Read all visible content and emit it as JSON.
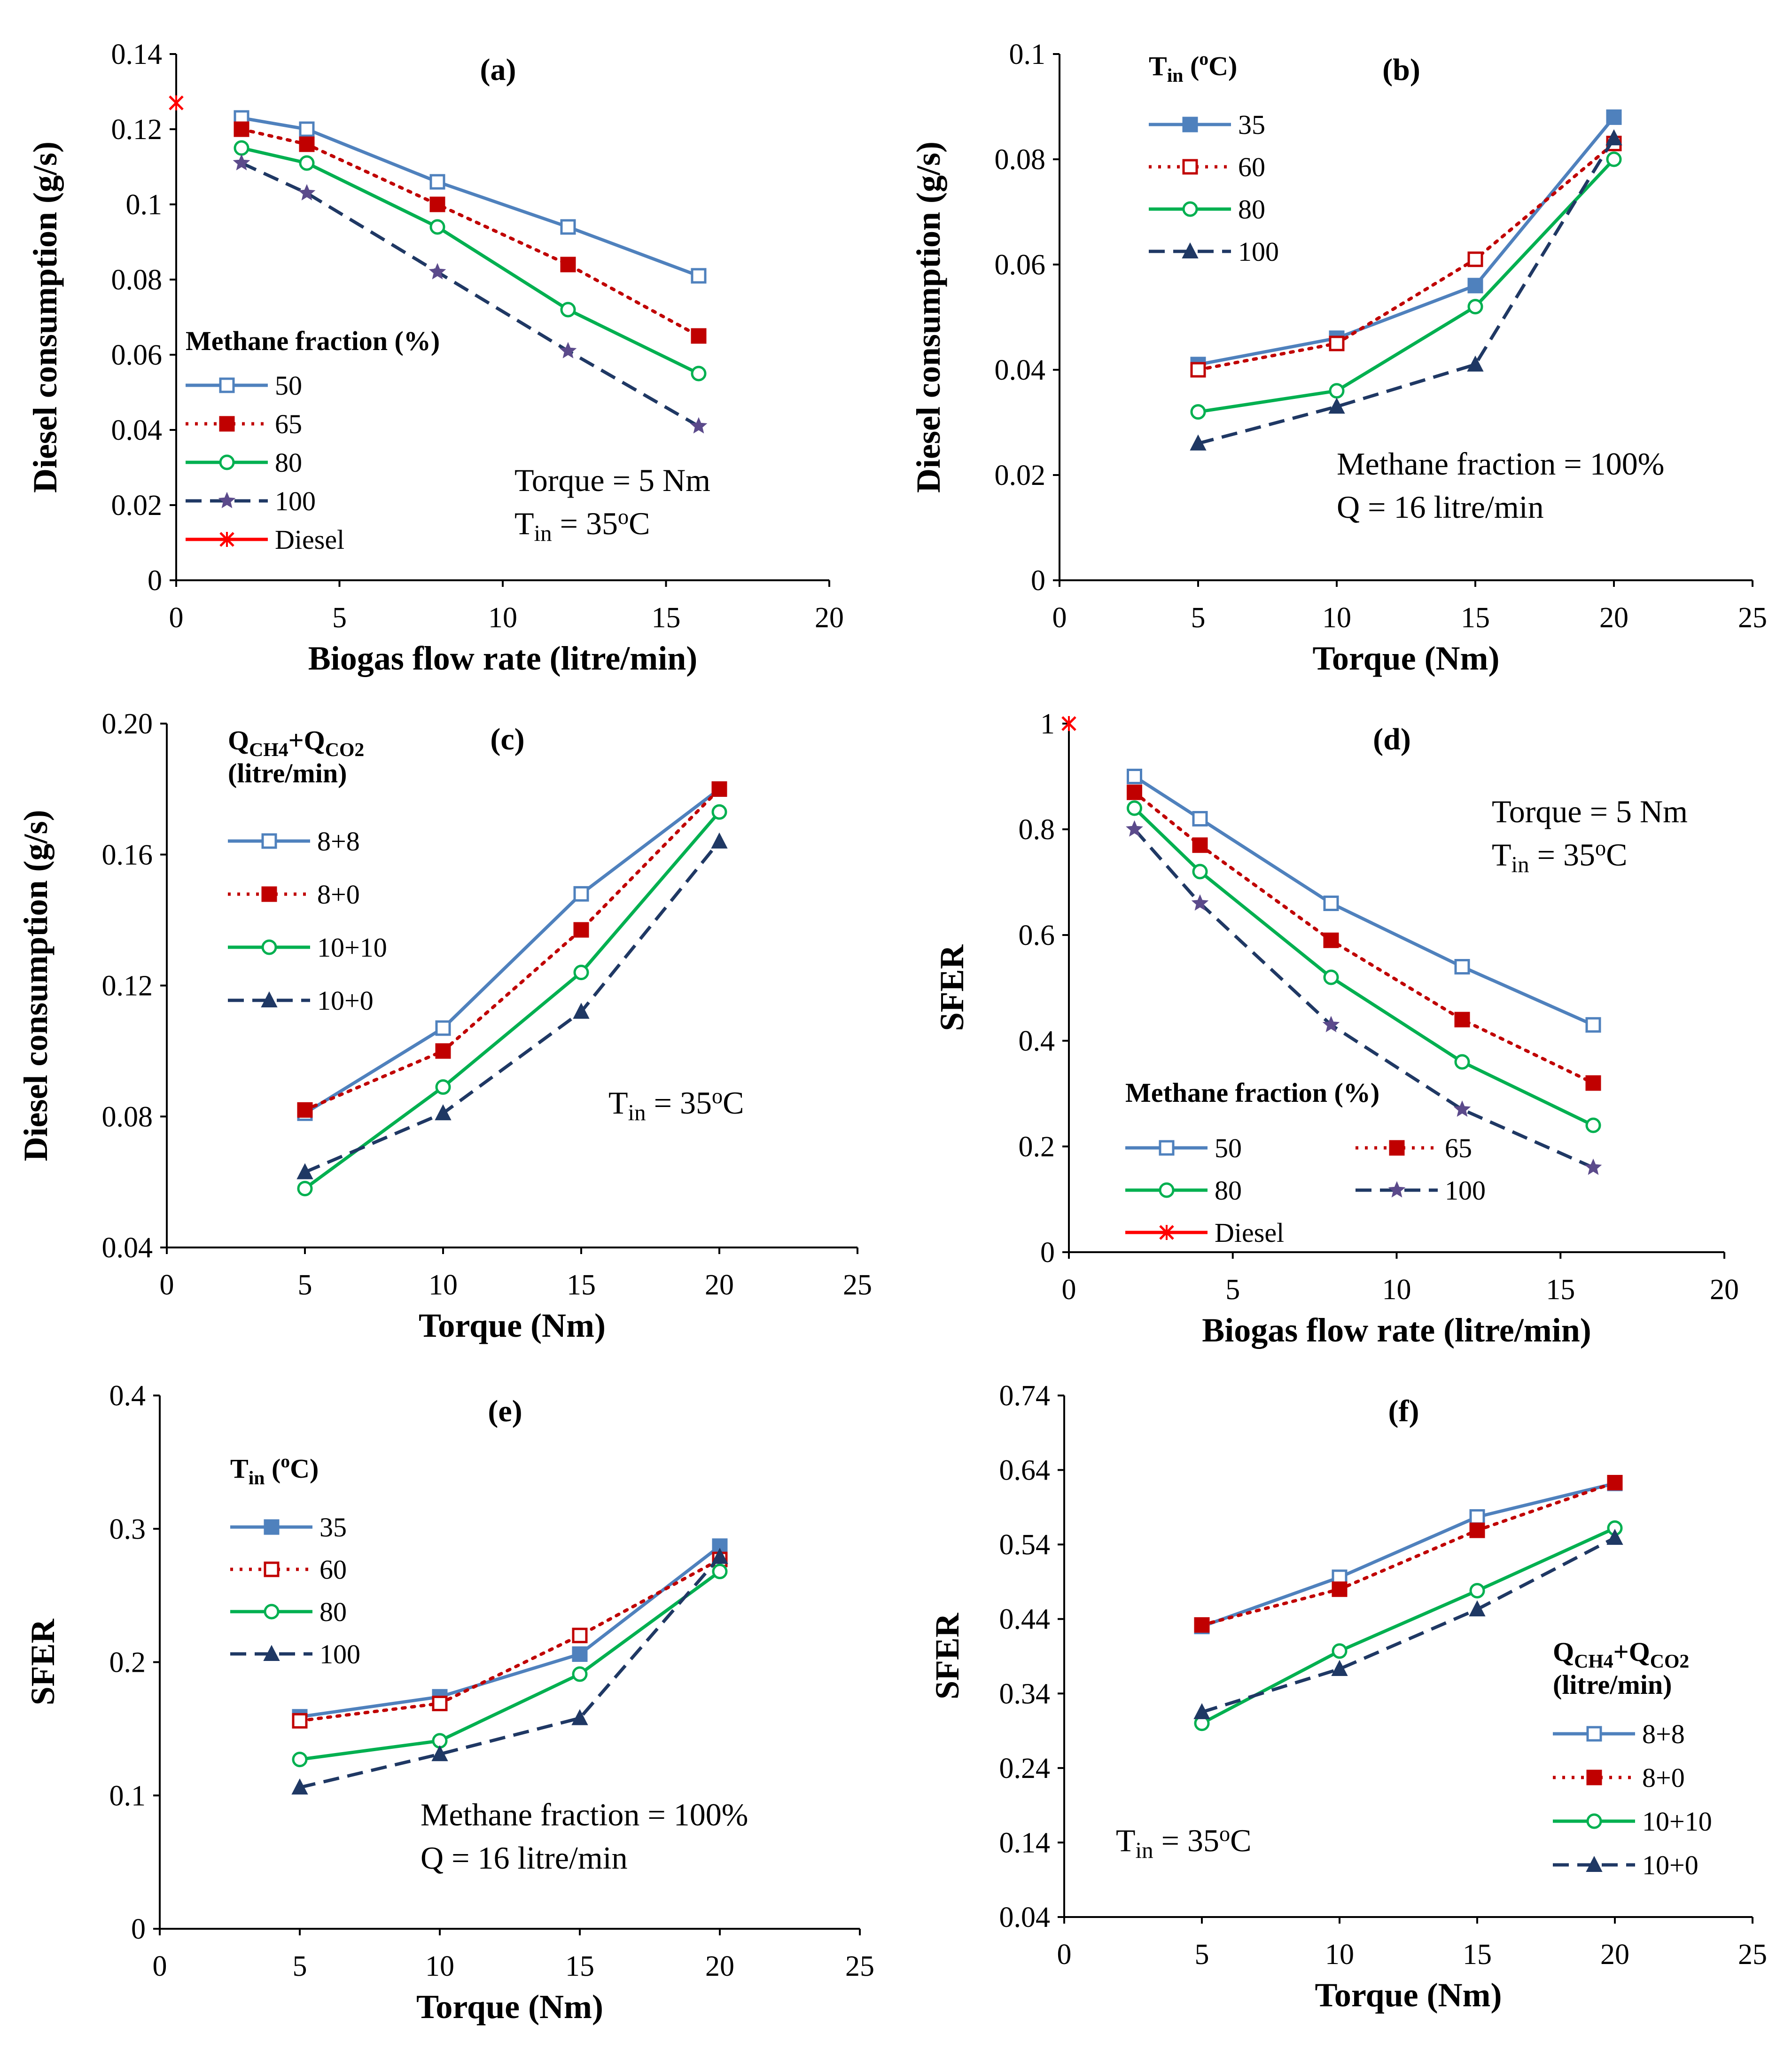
{
  "chart_data": [
    {
      "type": "line",
      "panel_label": "(a)",
      "xlabel": "Biogas flow rate (litre/min)",
      "ylabel": "Diesel consumption (g/s)",
      "xlim": [
        0,
        20
      ],
      "ylim": [
        0,
        0.14
      ],
      "xticks": [
        "0",
        "5",
        "10",
        "15",
        "20"
      ],
      "yticks": [
        "0",
        "0.02",
        "0.04",
        "0.06",
        "0.08",
        "0.1",
        "0.12",
        "0.14"
      ],
      "legend_title": "Methane fraction (%)",
      "notes": [
        "Torque = 5 Nm",
        "Tin = 35oC"
      ],
      "series": [
        {
          "name": "50",
          "x": [
            2,
            4,
            8,
            12,
            16
          ],
          "y": [
            0.123,
            0.12,
            0.106,
            0.094,
            0.081
          ]
        },
        {
          "name": "65",
          "x": [
            2,
            4,
            8,
            12,
            16
          ],
          "y": [
            0.12,
            0.116,
            0.1,
            0.084,
            0.065
          ]
        },
        {
          "name": "80",
          "x": [
            2,
            4,
            8,
            12,
            16
          ],
          "y": [
            0.115,
            0.111,
            0.094,
            0.072,
            0.055
          ]
        },
        {
          "name": "100",
          "x": [
            2,
            4,
            8,
            12,
            16
          ],
          "y": [
            0.111,
            0.103,
            0.082,
            0.061,
            0.041
          ]
        },
        {
          "name": "Diesel",
          "x": [
            0
          ],
          "y": [
            0.127
          ]
        }
      ]
    },
    {
      "type": "line",
      "panel_label": "(b)",
      "xlabel": "Torque (Nm)",
      "ylabel": "Diesel consumption (g/s)",
      "xlim": [
        0,
        25
      ],
      "ylim": [
        0,
        0.1
      ],
      "xticks": [
        "0",
        "5",
        "10",
        "15",
        "20",
        "25"
      ],
      "yticks": [
        "0",
        "0.02",
        "0.04",
        "0.06",
        "0.08",
        "0.1"
      ],
      "legend_title": "Tin (oC)",
      "notes": [
        "Methane fraction = 100%",
        "Q = 16 litre/min"
      ],
      "series": [
        {
          "name": "35",
          "x": [
            5,
            10,
            15,
            20
          ],
          "y": [
            0.041,
            0.046,
            0.056,
            0.088
          ]
        },
        {
          "name": "60",
          "x": [
            5,
            10,
            15,
            20
          ],
          "y": [
            0.04,
            0.045,
            0.061,
            0.083
          ]
        },
        {
          "name": "80",
          "x": [
            5,
            10,
            15,
            20
          ],
          "y": [
            0.032,
            0.036,
            0.052,
            0.08
          ]
        },
        {
          "name": "100",
          "x": [
            5,
            10,
            15,
            20
          ],
          "y": [
            0.026,
            0.033,
            0.041,
            0.084
          ]
        }
      ]
    },
    {
      "type": "line",
      "panel_label": "(c)",
      "xlabel": "Torque (Nm)",
      "ylabel": "Diesel consumption (g/s)",
      "xlim": [
        0,
        25
      ],
      "ylim": [
        0.04,
        0.2
      ],
      "xticks": [
        "0",
        "5",
        "10",
        "15",
        "20",
        "25"
      ],
      "yticks": [
        "0.04",
        "0.08",
        "0.12",
        "0.16",
        "0.20"
      ],
      "legend_title": "QCH4+QCO2 (litre/min)",
      "notes": [
        "Tin = 35oC"
      ],
      "series": [
        {
          "name": "8+8",
          "x": [
            5,
            10,
            15,
            20
          ],
          "y": [
            0.081,
            0.107,
            0.148,
            0.18
          ]
        },
        {
          "name": "8+0",
          "x": [
            5,
            10,
            15,
            20
          ],
          "y": [
            0.082,
            0.1,
            0.137,
            0.18
          ]
        },
        {
          "name": "10+10",
          "x": [
            5,
            10,
            15,
            20
          ],
          "y": [
            0.058,
            0.089,
            0.124,
            0.173
          ]
        },
        {
          "name": "10+0",
          "x": [
            5,
            10,
            15,
            20
          ],
          "y": [
            0.063,
            0.081,
            0.112,
            0.164
          ]
        }
      ]
    },
    {
      "type": "line",
      "panel_label": "(d)",
      "xlabel": "Biogas flow rate (litre/min)",
      "ylabel": "SFER",
      "xlim": [
        0,
        20
      ],
      "ylim": [
        0,
        1
      ],
      "xticks": [
        "0",
        "5",
        "10",
        "15",
        "20"
      ],
      "yticks": [
        "0",
        "0.2",
        "0.4",
        "0.6",
        "0.8",
        "1"
      ],
      "legend_title": "Methane fraction (%)",
      "notes": [
        "Torque = 5 Nm",
        "Tin = 35oC"
      ],
      "series": [
        {
          "name": "50",
          "x": [
            2,
            4,
            8,
            12,
            16
          ],
          "y": [
            0.9,
            0.82,
            0.66,
            0.54,
            0.43
          ]
        },
        {
          "name": "65",
          "x": [
            2,
            4,
            8,
            12,
            16
          ],
          "y": [
            0.87,
            0.77,
            0.59,
            0.44,
            0.32
          ]
        },
        {
          "name": "80",
          "x": [
            2,
            4,
            8,
            12,
            16
          ],
          "y": [
            0.84,
            0.72,
            0.52,
            0.36,
            0.24
          ]
        },
        {
          "name": "100",
          "x": [
            2,
            4,
            8,
            12,
            16
          ],
          "y": [
            0.8,
            0.66,
            0.43,
            0.27,
            0.16
          ]
        },
        {
          "name": "Diesel",
          "x": [
            0
          ],
          "y": [
            1.0
          ]
        }
      ]
    },
    {
      "type": "line",
      "panel_label": "(e)",
      "xlabel": "Torque (Nm)",
      "ylabel": "SFER",
      "xlim": [
        0,
        25
      ],
      "ylim": [
        0,
        0.4
      ],
      "xticks": [
        "0",
        "5",
        "10",
        "15",
        "20",
        "25"
      ],
      "yticks": [
        "0",
        "0.1",
        "0.2",
        "0.3",
        "0.4"
      ],
      "legend_title": "Tin (oC)",
      "notes": [
        "Methane fraction = 100%",
        "Q = 16 litre/min"
      ],
      "series": [
        {
          "name": "35",
          "x": [
            5,
            10,
            15,
            20
          ],
          "y": [
            0.159,
            0.174,
            0.206,
            0.287
          ]
        },
        {
          "name": "60",
          "x": [
            5,
            10,
            15,
            20
          ],
          "y": [
            0.156,
            0.169,
            0.22,
            0.277
          ]
        },
        {
          "name": "80",
          "x": [
            5,
            10,
            15,
            20
          ],
          "y": [
            0.127,
            0.141,
            0.191,
            0.268
          ]
        },
        {
          "name": "100",
          "x": [
            5,
            10,
            15,
            20
          ],
          "y": [
            0.106,
            0.131,
            0.158,
            0.279
          ]
        }
      ]
    },
    {
      "type": "line",
      "panel_label": "(f)",
      "xlabel": "Torque (Nm)",
      "ylabel": "SFER",
      "xlim": [
        0,
        25
      ],
      "ylim": [
        0.04,
        0.74
      ],
      "xticks": [
        "0",
        "5",
        "10",
        "15",
        "20",
        "25"
      ],
      "yticks": [
        "0.04",
        "0.14",
        "0.24",
        "0.34",
        "0.44",
        "0.54",
        "0.64",
        "0.74"
      ],
      "legend_title": "QCH4+QCO2 (litre/min)",
      "notes": [
        "Tin = 35oC"
      ],
      "series": [
        {
          "name": "8+8",
          "x": [
            5,
            10,
            15,
            20
          ],
          "y": [
            0.43,
            0.496,
            0.577,
            0.622
          ]
        },
        {
          "name": "8+0",
          "x": [
            5,
            10,
            15,
            20
          ],
          "y": [
            0.432,
            0.48,
            0.559,
            0.623
          ]
        },
        {
          "name": "10+10",
          "x": [
            5,
            10,
            15,
            20
          ],
          "y": [
            0.3,
            0.397,
            0.478,
            0.562
          ]
        },
        {
          "name": "10+0",
          "x": [
            5,
            10,
            15,
            20
          ],
          "y": [
            0.315,
            0.373,
            0.453,
            0.549
          ]
        }
      ]
    }
  ],
  "styles": {
    "blue": "#4f81bd",
    "red": "#c00000",
    "green": "#00b050",
    "navy": "#1f3864",
    "purple": "#5b4a8b",
    "diesel_red": "#ff0000"
  }
}
